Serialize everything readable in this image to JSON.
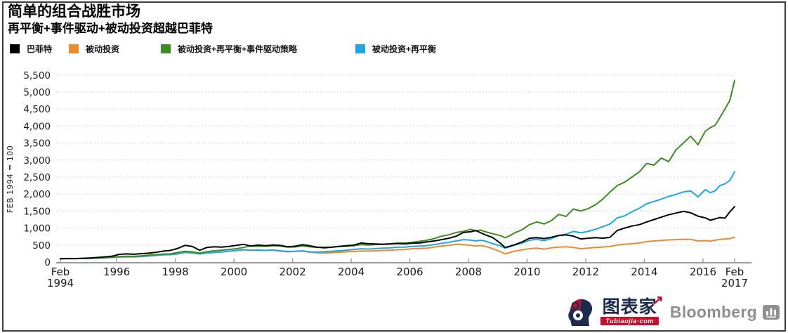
{
  "header": {
    "title": "简单的组合战胜市场",
    "subtitle": "再平衡+事件驱动+被动投资超越巴菲特"
  },
  "footer": {
    "brand_cn": "图表家",
    "brand_domain": "Tubiaojia·com",
    "brand_arrow": "↗",
    "bloomberg": "Bloomberg"
  },
  "chart_data": {
    "type": "line",
    "title": "简单的组合战胜市场",
    "subtitle": "再平衡+事件驱动+被动投资超越巴菲特",
    "ylabel": "FEB 1994 = 100",
    "xlabel": "",
    "ylim": [
      0,
      5500
    ],
    "xlim": [
      1994.08,
      2017.08
    ],
    "grid": "horizontal-dotted",
    "legend_position": "top",
    "y_ticks": [
      {
        "v": 0,
        "label": "0"
      },
      {
        "v": 500,
        "label": "500"
      },
      {
        "v": 1000,
        "label": "1,000"
      },
      {
        "v": 1500,
        "label": "1,500"
      },
      {
        "v": 2000,
        "label": "2,000"
      },
      {
        "v": 2500,
        "label": "2,500"
      },
      {
        "v": 3000,
        "label": "3,000"
      },
      {
        "v": 3500,
        "label": "3,500"
      },
      {
        "v": 4000,
        "label": "4,000"
      },
      {
        "v": 4500,
        "label": "4,500"
      },
      {
        "v": 5000,
        "label": "5,000"
      },
      {
        "v": 5500,
        "label": "5,500"
      }
    ],
    "x_ticks": [
      {
        "x": 1994.08,
        "lines": [
          "Feb",
          "1994"
        ]
      },
      {
        "x": 1996,
        "lines": [
          "1996"
        ]
      },
      {
        "x": 1998,
        "lines": [
          "1998"
        ]
      },
      {
        "x": 2000,
        "lines": [
          "2000"
        ]
      },
      {
        "x": 2002,
        "lines": [
          "2002"
        ]
      },
      {
        "x": 2004,
        "lines": [
          "2004"
        ]
      },
      {
        "x": 2006,
        "lines": [
          "2006"
        ]
      },
      {
        "x": 2008,
        "lines": [
          "2008"
        ]
      },
      {
        "x": 2010,
        "lines": [
          "2010"
        ]
      },
      {
        "x": 2012,
        "lines": [
          "2012"
        ]
      },
      {
        "x": 2014,
        "lines": [
          "2014"
        ]
      },
      {
        "x": 2016,
        "lines": [
          "2016"
        ]
      },
      {
        "x": 2017.08,
        "lines": [
          "Feb",
          "2017"
        ]
      }
    ],
    "x": [
      1994.08,
      1994.33,
      1994.58,
      1994.83,
      1995.08,
      1995.33,
      1995.58,
      1995.83,
      1996.08,
      1996.33,
      1996.58,
      1996.83,
      1997.08,
      1997.33,
      1997.58,
      1997.83,
      1998.08,
      1998.33,
      1998.58,
      1998.83,
      1999.08,
      1999.33,
      1999.58,
      1999.83,
      2000.08,
      2000.33,
      2000.58,
      2000.83,
      2001.08,
      2001.33,
      2001.58,
      2001.83,
      2002.08,
      2002.33,
      2002.58,
      2002.83,
      2003.08,
      2003.33,
      2003.58,
      2003.83,
      2004.08,
      2004.33,
      2004.58,
      2004.83,
      2005.08,
      2005.33,
      2005.58,
      2005.83,
      2006.08,
      2006.33,
      2006.58,
      2006.83,
      2007.08,
      2007.33,
      2007.58,
      2007.83,
      2008.08,
      2008.25,
      2008.42,
      2008.58,
      2008.83,
      2009.08,
      2009.25,
      2009.42,
      2009.58,
      2009.83,
      2010.08,
      2010.33,
      2010.58,
      2010.83,
      2011.08,
      2011.33,
      2011.58,
      2011.83,
      2012.08,
      2012.33,
      2012.58,
      2012.83,
      2013.08,
      2013.33,
      2013.58,
      2013.83,
      2014.08,
      2014.33,
      2014.58,
      2014.83,
      2015.08,
      2015.33,
      2015.58,
      2015.83,
      2016.08,
      2016.25,
      2016.42,
      2016.58,
      2016.75,
      2016.92,
      2017.08
    ],
    "series": [
      {
        "key": "passive",
        "name": "被动投资",
        "color": "#EE8A2A",
        "values": [
          100,
          100,
          102,
          104,
          108,
          114,
          122,
          132,
          145,
          152,
          150,
          160,
          175,
          190,
          210,
          215,
          235,
          280,
          265,
          235,
          260,
          280,
          295,
          315,
          340,
          365,
          350,
          355,
          340,
          350,
          320,
          300,
          310,
          325,
          290,
          270,
          265,
          275,
          290,
          300,
          310,
          325,
          320,
          330,
          340,
          350,
          360,
          370,
          390,
          400,
          410,
          440,
          470,
          490,
          520,
          510,
          490,
          470,
          485,
          460,
          390,
          310,
          240,
          280,
          320,
          360,
          390,
          410,
          380,
          420,
          440,
          450,
          430,
          390,
          410,
          430,
          440,
          460,
          500,
          520,
          540,
          560,
          600,
          620,
          635,
          650,
          660,
          670,
          665,
          620,
          630,
          615,
          640,
          665,
          675,
          690,
          730
        ]
      },
      {
        "key": "passive-rebalance",
        "name": "被动投资+再平衡",
        "color": "#1FA6E8",
        "values": [
          100,
          101,
          103,
          106,
          110,
          116,
          124,
          135,
          150,
          158,
          155,
          165,
          180,
          195,
          215,
          220,
          240,
          285,
          270,
          240,
          265,
          285,
          300,
          320,
          337,
          360,
          345,
          350,
          340,
          355,
          330,
          310,
          315,
          330,
          300,
          295,
          305,
          315,
          330,
          345,
          370,
          390,
          380,
          395,
          410,
          420,
          435,
          440,
          460,
          470,
          480,
          510,
          550,
          580,
          620,
          660,
          645,
          620,
          640,
          615,
          540,
          480,
          410,
          450,
          500,
          560,
          640,
          670,
          630,
          690,
          780,
          820,
          900,
          860,
          900,
          960,
          1040,
          1120,
          1300,
          1360,
          1480,
          1580,
          1715,
          1780,
          1850,
          1930,
          1990,
          2060,
          2090,
          1920,
          2130,
          2040,
          2100,
          2250,
          2300,
          2400,
          2660
        ]
      },
      {
        "key": "passive-rebalance-event",
        "name": "被动投资+再平衡+事件驱动策略",
        "color": "#3A8E20",
        "values": [
          100,
          102,
          104,
          107,
          112,
          120,
          128,
          140,
          162,
          170,
          168,
          180,
          200,
          215,
          235,
          240,
          280,
          315,
          300,
          265,
          305,
          330,
          350,
          370,
          390,
          430,
          475,
          460,
          465,
          480,
          470,
          440,
          445,
          470,
          450,
          430,
          435,
          440,
          455,
          465,
          480,
          510,
          500,
          515,
          525,
          540,
          555,
          560,
          580,
          610,
          640,
          690,
          760,
          800,
          870,
          900,
          960,
          920,
          940,
          890,
          830,
          780,
          715,
          780,
          860,
          950,
          1100,
          1180,
          1120,
          1220,
          1400,
          1340,
          1560,
          1500,
          1570,
          1680,
          1850,
          2060,
          2250,
          2350,
          2500,
          2650,
          2900,
          2850,
          3060,
          2950,
          3300,
          3500,
          3700,
          3450,
          3850,
          3950,
          4030,
          4250,
          4500,
          4760,
          5340
        ]
      },
      {
        "key": "buffett",
        "name": "巴菲特",
        "color": "#000000",
        "values": [
          100,
          105,
          102,
          110,
          120,
          135,
          150,
          170,
          225,
          240,
          230,
          245,
          260,
          285,
          320,
          340,
          400,
          490,
          460,
          345,
          430,
          450,
          440,
          460,
          490,
          520,
          470,
          500,
          480,
          500,
          490,
          450,
          465,
          510,
          480,
          440,
          420,
          435,
          460,
          480,
          495,
          560,
          540,
          530,
          520,
          530,
          545,
          535,
          555,
          560,
          590,
          620,
          660,
          700,
          760,
          870,
          890,
          925,
          860,
          800,
          720,
          560,
          430,
          470,
          510,
          590,
          700,
          720,
          690,
          730,
          780,
          800,
          760,
          680,
          700,
          720,
          700,
          730,
          930,
          1000,
          1060,
          1100,
          1180,
          1250,
          1320,
          1390,
          1440,
          1490,
          1450,
          1350,
          1300,
          1230,
          1270,
          1310,
          1290,
          1480,
          1630
        ]
      }
    ],
    "legend_order": [
      "buffett",
      "passive",
      "passive-rebalance-event",
      "passive-rebalance"
    ]
  }
}
